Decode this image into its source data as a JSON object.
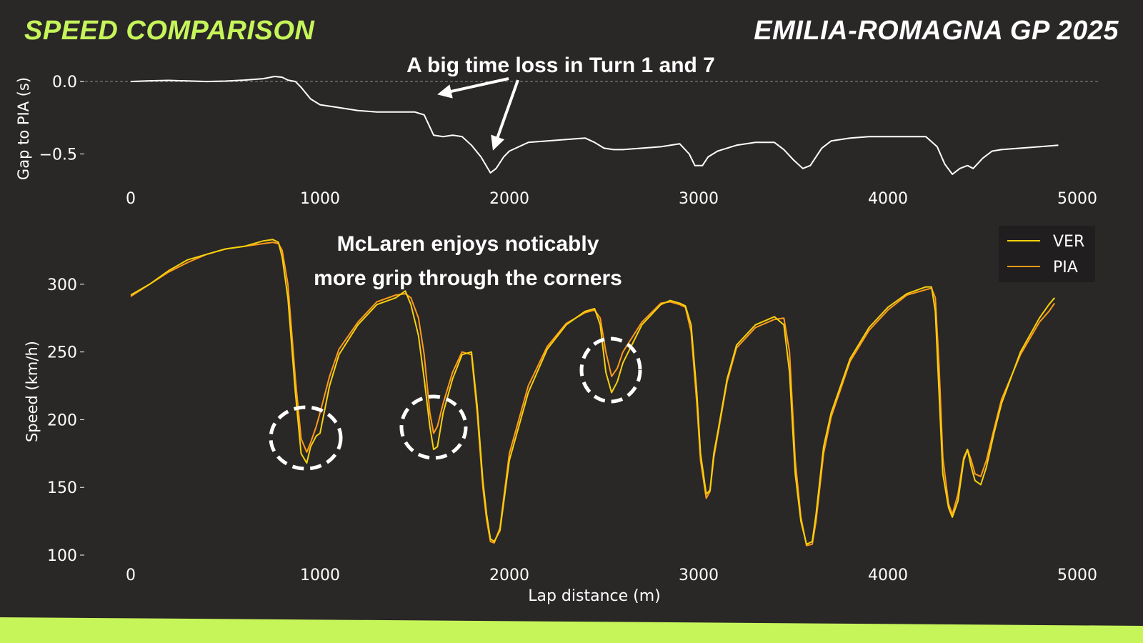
{
  "header": {
    "title": "SPEED COMPARISON",
    "event": "EMILIA-ROMAGNA GP 2025"
  },
  "colors": {
    "background": "#2a2727",
    "accent": "#c6f55a",
    "ver": "#f5d20a",
    "pia": "#ff9a1a",
    "gap": "#ffffff"
  },
  "annotations": {
    "gap_note": "A big time loss in Turn 1 and 7",
    "grip_note_line1": "McLaren enjoys noticably",
    "grip_note_line2": "more grip through the corners"
  },
  "chart_data": [
    {
      "type": "line",
      "ylabel": "Gap to PIA (s)",
      "xlim": [
        0,
        5000
      ],
      "ylim": [
        -0.68,
        0.05
      ],
      "xticks": [
        0,
        1000,
        2000,
        3000,
        4000,
        5000
      ],
      "yticks": [
        0.0,
        -0.5
      ],
      "ytick_labels": [
        "0.0",
        "−0.5"
      ],
      "reference_line": 0.0,
      "series": [
        {
          "x": [
            0,
            100,
            200,
            300,
            400,
            500,
            600,
            700,
            760,
            800,
            830,
            870,
            900,
            950,
            1000,
            1050,
            1100,
            1200,
            1300,
            1400,
            1500,
            1550,
            1600,
            1650,
            1700,
            1750,
            1800,
            1850,
            1900,
            1930,
            1970,
            2000,
            2100,
            2200,
            2300,
            2400,
            2450,
            2500,
            2550,
            2600,
            2700,
            2800,
            2900,
            2950,
            2980,
            3020,
            3050,
            3100,
            3200,
            3300,
            3400,
            3450,
            3500,
            3550,
            3590,
            3650,
            3700,
            3800,
            3900,
            4000,
            4100,
            4200,
            4260,
            4300,
            4340,
            4380,
            4420,
            4450,
            4500,
            4550,
            4600,
            4700,
            4800,
            4900
          ],
          "y": [
            0.0,
            0.005,
            0.008,
            0.004,
            0.0,
            0.003,
            0.01,
            0.02,
            0.035,
            0.03,
            0.01,
            0.0,
            -0.04,
            -0.12,
            -0.16,
            -0.17,
            -0.18,
            -0.2,
            -0.21,
            -0.21,
            -0.21,
            -0.23,
            -0.37,
            -0.38,
            -0.37,
            -0.38,
            -0.44,
            -0.52,
            -0.63,
            -0.6,
            -0.52,
            -0.48,
            -0.42,
            -0.41,
            -0.4,
            -0.39,
            -0.42,
            -0.46,
            -0.47,
            -0.47,
            -0.46,
            -0.45,
            -0.43,
            -0.5,
            -0.58,
            -0.58,
            -0.52,
            -0.48,
            -0.44,
            -0.42,
            -0.42,
            -0.47,
            -0.54,
            -0.6,
            -0.58,
            -0.46,
            -0.41,
            -0.39,
            -0.38,
            -0.38,
            -0.38,
            -0.38,
            -0.45,
            -0.57,
            -0.64,
            -0.6,
            -0.58,
            -0.6,
            -0.53,
            -0.48,
            -0.47,
            -0.46,
            -0.45,
            -0.44
          ]
        }
      ]
    },
    {
      "type": "line",
      "xlabel": "Lap distance (m)",
      "ylabel": "Speed (km/h)",
      "xlim": [
        0,
        5000
      ],
      "ylim": [
        100,
        340
      ],
      "xticks": [
        0,
        1000,
        2000,
        3000,
        4000,
        5000
      ],
      "yticks": [
        100,
        150,
        200,
        250,
        300
      ],
      "legend": "top-right",
      "series": [
        {
          "name": "VER",
          "x": [
            0,
            100,
            200,
            300,
            400,
            500,
            600,
            700,
            750,
            780,
            800,
            830,
            870,
            900,
            930,
            950,
            980,
            1000,
            1050,
            1100,
            1200,
            1300,
            1400,
            1450,
            1480,
            1520,
            1550,
            1580,
            1600,
            1620,
            1650,
            1700,
            1750,
            1800,
            1830,
            1860,
            1880,
            1900,
            1920,
            1950,
            2000,
            2100,
            2200,
            2300,
            2400,
            2450,
            2480,
            2510,
            2540,
            2570,
            2600,
            2700,
            2800,
            2850,
            2900,
            2930,
            2960,
            2990,
            3010,
            3040,
            3060,
            3080,
            3100,
            3150,
            3200,
            3300,
            3400,
            3450,
            3480,
            3510,
            3540,
            3570,
            3600,
            3620,
            3660,
            3700,
            3800,
            3900,
            4000,
            4100,
            4200,
            4230,
            4250,
            4270,
            4290,
            4320,
            4340,
            4370,
            4400,
            4420,
            4440,
            4460,
            4490,
            4520,
            4560,
            4600,
            4700,
            4800,
            4850,
            4880
          ],
          "y": [
            292,
            300,
            310,
            318,
            322,
            326,
            328,
            332,
            333,
            331,
            320,
            290,
            220,
            175,
            168,
            180,
            188,
            190,
            225,
            248,
            270,
            285,
            290,
            295,
            285,
            262,
            230,
            195,
            178,
            180,
            205,
            230,
            248,
            250,
            210,
            155,
            130,
            112,
            110,
            118,
            170,
            220,
            252,
            270,
            280,
            282,
            270,
            235,
            220,
            228,
            242,
            270,
            285,
            288,
            286,
            284,
            270,
            220,
            175,
            145,
            148,
            175,
            190,
            230,
            255,
            270,
            276,
            270,
            235,
            160,
            125,
            108,
            110,
            130,
            180,
            205,
            245,
            268,
            283,
            293,
            298,
            298,
            280,
            220,
            160,
            135,
            128,
            140,
            170,
            178,
            165,
            155,
            152,
            165,
            190,
            212,
            250,
            275,
            285,
            290
          ]
        },
        {
          "name": "PIA",
          "x": [
            0,
            100,
            200,
            300,
            400,
            500,
            600,
            700,
            750,
            780,
            800,
            830,
            870,
            900,
            930,
            950,
            980,
            1000,
            1050,
            1100,
            1200,
            1300,
            1400,
            1450,
            1480,
            1520,
            1550,
            1580,
            1600,
            1620,
            1650,
            1700,
            1750,
            1800,
            1830,
            1860,
            1880,
            1900,
            1920,
            1950,
            2000,
            2100,
            2200,
            2300,
            2400,
            2450,
            2480,
            2510,
            2540,
            2570,
            2600,
            2700,
            2800,
            2850,
            2900,
            2930,
            2960,
            2990,
            3010,
            3040,
            3060,
            3080,
            3100,
            3150,
            3200,
            3300,
            3400,
            3450,
            3480,
            3510,
            3540,
            3570,
            3600,
            3620,
            3660,
            3700,
            3800,
            3900,
            4000,
            4100,
            4200,
            4230,
            4250,
            4270,
            4290,
            4320,
            4340,
            4370,
            4400,
            4420,
            4440,
            4460,
            4490,
            4520,
            4560,
            4600,
            4700,
            4800,
            4850,
            4880
          ],
          "y": [
            291,
            300,
            309,
            316,
            322,
            326,
            328,
            330,
            331,
            330,
            325,
            300,
            230,
            186,
            176,
            183,
            195,
            205,
            232,
            252,
            272,
            287,
            292,
            293,
            290,
            275,
            248,
            205,
            190,
            195,
            212,
            235,
            250,
            248,
            205,
            150,
            126,
            110,
            109,
            120,
            175,
            225,
            254,
            271,
            279,
            281,
            275,
            250,
            232,
            238,
            250,
            272,
            286,
            287,
            285,
            283,
            265,
            212,
            170,
            142,
            147,
            172,
            188,
            228,
            253,
            268,
            274,
            275,
            250,
            170,
            128,
            107,
            108,
            125,
            175,
            202,
            243,
            266,
            281,
            292,
            296,
            297,
            290,
            240,
            172,
            138,
            130,
            145,
            172,
            178,
            170,
            160,
            158,
            170,
            193,
            215,
            248,
            272,
            280,
            286
          ]
        }
      ]
    }
  ]
}
